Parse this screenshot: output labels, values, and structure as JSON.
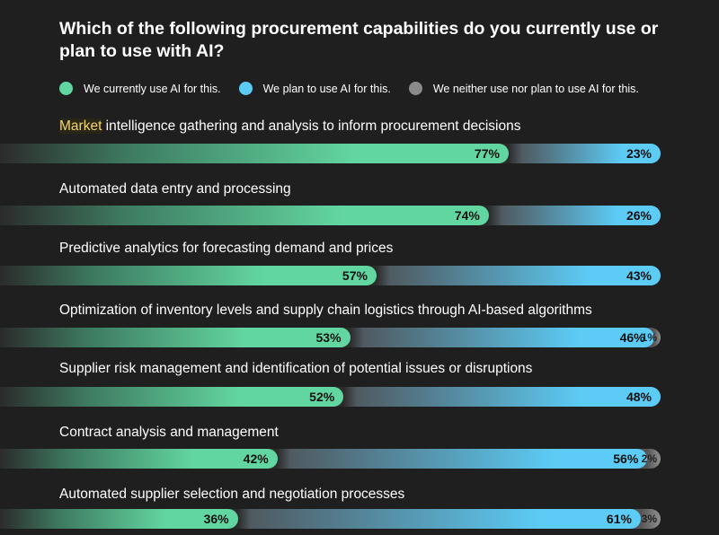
{
  "chart_data": {
    "type": "bar",
    "orientation": "horizontal",
    "stacked": true,
    "title": "Which of the following procurement capabilities do you currently use or plan to use with AI?",
    "legend_position": "top",
    "series": [
      {
        "name": "We currently use AI for this.",
        "color": "#62d6a0",
        "values": [
          77,
          74,
          57,
          53,
          52,
          42,
          36
        ]
      },
      {
        "name": "We plan to use AI for this.",
        "color": "#5ccbf5",
        "values": [
          23,
          26,
          43,
          46,
          48,
          56,
          61
        ]
      },
      {
        "name": "We neither use nor plan to use AI for this.",
        "color": "#8a8a8a",
        "values": [
          0,
          0,
          0,
          1,
          0,
          2,
          3
        ]
      }
    ],
    "categories": [
      "Market intelligence gathering and analysis to inform procurement decisions",
      "Automated data entry and processing",
      "Predictive analytics for forecasting demand and prices",
      "Optimization of inventory levels and supply chain logistics through AI-based algorithms",
      "Supplier risk management and identification of potential issues or disruptions",
      "Contract analysis and management",
      "Automated supplier selection and negotiation processes"
    ],
    "highlighted_word": "Market",
    "unit": "%",
    "xlim": [
      0,
      100
    ]
  }
}
